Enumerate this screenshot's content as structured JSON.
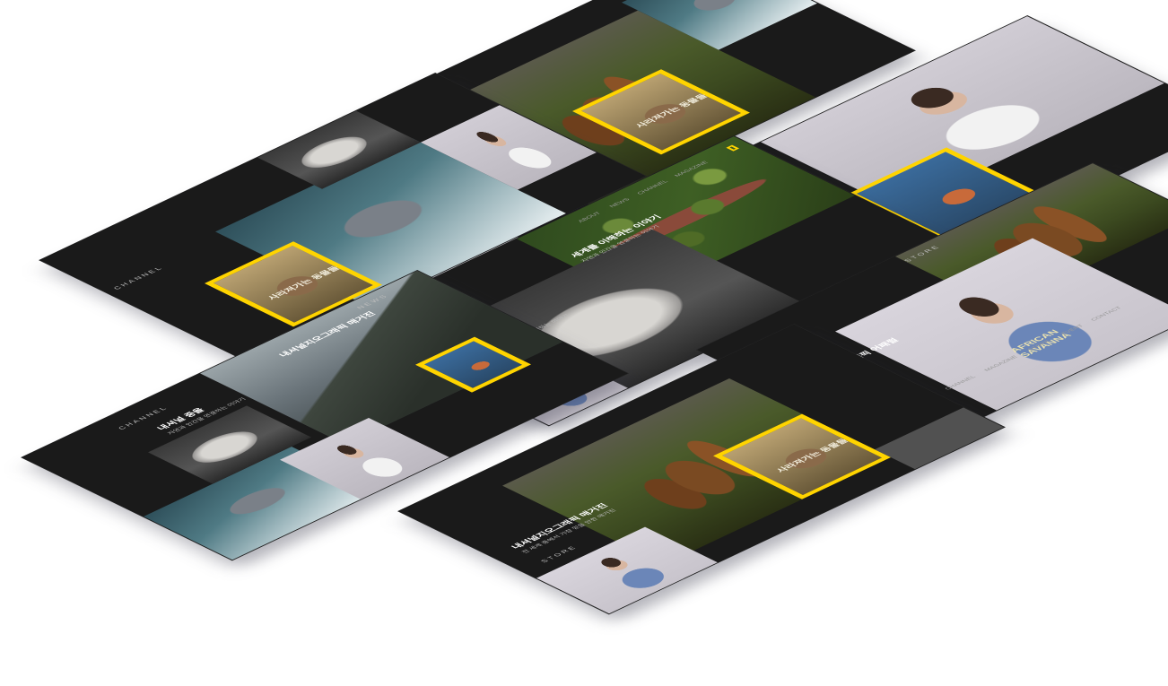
{
  "scene": {
    "description_type": "isometric mockup of website screens",
    "screen_count": 7,
    "accent_color": "#ffd400",
    "background_color": "#ffffff"
  },
  "captions": {
    "giraffe_title": "내셔널지오그래픽 매거진",
    "giraffe_sub": "전 세계 중에서 가장 믿을 만한 매거진",
    "wolf_title": "내셔널 중을",
    "wolf_sub": "자연과 인간을 연결하는 이야기",
    "forest_title": "세계를 이해하는 이야기",
    "forest_sub": "자연과 인간을 연결하는 이야기",
    "store_title": "내셔널지오그래픽 어패럴",
    "mag_cover_text": "사라져가는 동물들",
    "news_label": "NEWS",
    "store_label": "STORE",
    "channel_label": "CHANNEL",
    "tshirt_line1": "AFRICAN",
    "tshirt_line2": "SAVANNA"
  },
  "nav": {
    "items": [
      "ABOUT",
      "NEWS",
      "CHANNEL",
      "MAGAZINE",
      "STORE",
      "EVENT",
      "CONTACT"
    ]
  }
}
